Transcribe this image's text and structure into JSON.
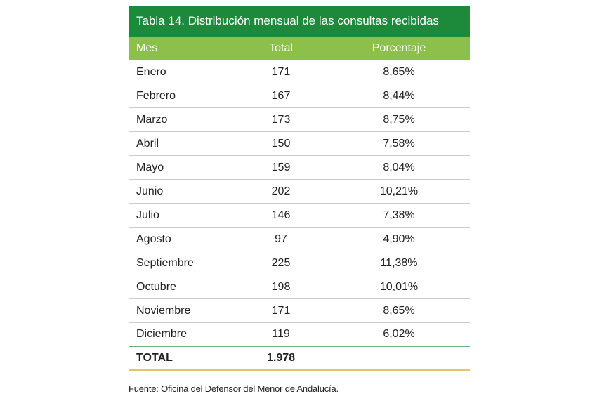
{
  "table": {
    "title": "Tabla 14. Distribución mensual de las consultas recibidas",
    "headers": {
      "mes": "Mes",
      "total": "Total",
      "porcentaje": "Porcentaje"
    },
    "rows": [
      {
        "mes": "Enero",
        "total": "171",
        "porcentaje": "8,65%"
      },
      {
        "mes": "Febrero",
        "total": "167",
        "porcentaje": "8,44%"
      },
      {
        "mes": "Marzo",
        "total": "173",
        "porcentaje": "8,75%"
      },
      {
        "mes": "Abril",
        "total": "150",
        "porcentaje": "7,58%"
      },
      {
        "mes": "Mayo",
        "total": "159",
        "porcentaje": "8,04%"
      },
      {
        "mes": "Junio",
        "total": "202",
        "porcentaje": "10,21%"
      },
      {
        "mes": "Julio",
        "total": "146",
        "porcentaje": "7,38%"
      },
      {
        "mes": "Agosto",
        "total": "97",
        "porcentaje": "4,90%"
      },
      {
        "mes": "Septiembre",
        "total": "225",
        "porcentaje": "11,38%"
      },
      {
        "mes": "Octubre",
        "total": "198",
        "porcentaje": "10,01%"
      },
      {
        "mes": "Noviembre",
        "total": "171",
        "porcentaje": "8,65%"
      },
      {
        "mes": "Diciembre",
        "total": "119",
        "porcentaje": "6,02%"
      }
    ],
    "total_row": {
      "label": "TOTAL",
      "total": "1.978",
      "porcentaje": ""
    }
  },
  "source": "Fuente: Oficina del Defensor del Menor de Andalucía.",
  "colors": {
    "title_bg": "#1d8a3b",
    "header_bg": "#8cc04b",
    "row_divider": "#cccccc",
    "last_row_divider": "#6fb27e",
    "total_divider": "#e9c36b"
  }
}
